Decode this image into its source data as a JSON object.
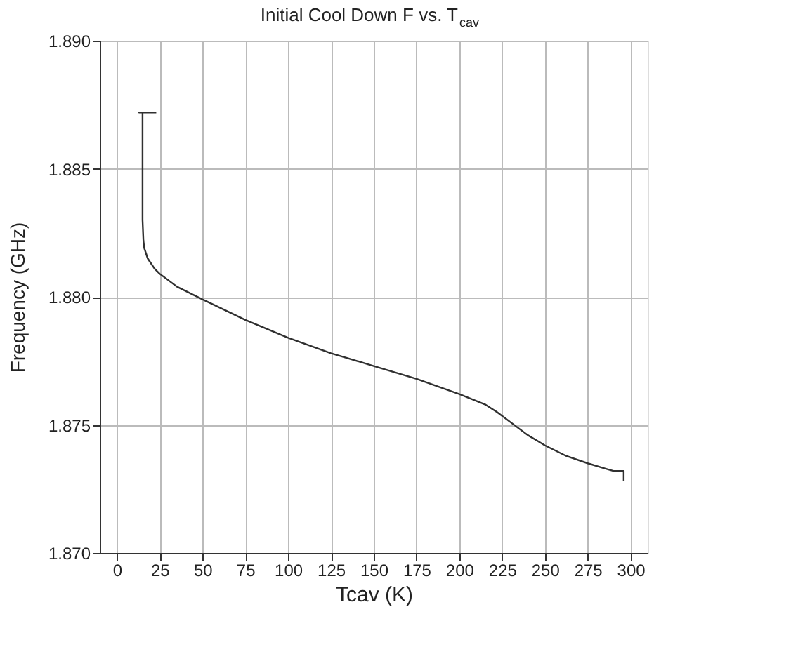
{
  "chart_data": {
    "type": "line",
    "title": "Initial Cool Down F vs. T$_{cav}$",
    "xlabel": "Tcav (K)",
    "ylabel": "Frequency (GHz)",
    "series": [
      {
        "color": "#303030",
        "x": [
          23,
          13,
          15,
          15,
          15.5,
          16,
          18,
          22,
          25,
          35,
          50,
          75,
          100,
          125,
          150,
          175,
          200,
          215,
          222,
          230,
          240,
          250,
          262,
          275,
          285,
          290,
          296,
          296
        ],
        "values": [
          1.8872,
          1.8872,
          1.8872,
          1.883,
          1.8822,
          1.8819,
          1.8815,
          1.8811,
          1.8809,
          1.8804,
          1.8799,
          1.8791,
          1.8784,
          1.8778,
          1.8773,
          1.8768,
          1.8762,
          1.8758,
          1.8755,
          1.8751,
          1.8746,
          1.8742,
          1.8738,
          1.8735,
          1.8733,
          1.8732,
          1.8732,
          1.8728
        ]
      }
    ],
    "xlim": [
      -10,
      310
    ],
    "xticks": [
      0,
      25,
      50,
      75,
      100,
      125,
      150,
      175,
      200,
      225,
      250,
      275,
      300
    ],
    "ylim": [
      1.87,
      1.89
    ],
    "yticks": [
      {
        "value": 1.87,
        "label": "1.870"
      },
      {
        "value": 1.875,
        "label": "1.875"
      },
      {
        "value": 1.88,
        "label": "1.880"
      },
      {
        "value": 1.885,
        "label": "1.885"
      },
      {
        "value": 1.89,
        "label": "1.890"
      }
    ],
    "grid": true,
    "marker": "none",
    "line_style": "solid"
  }
}
